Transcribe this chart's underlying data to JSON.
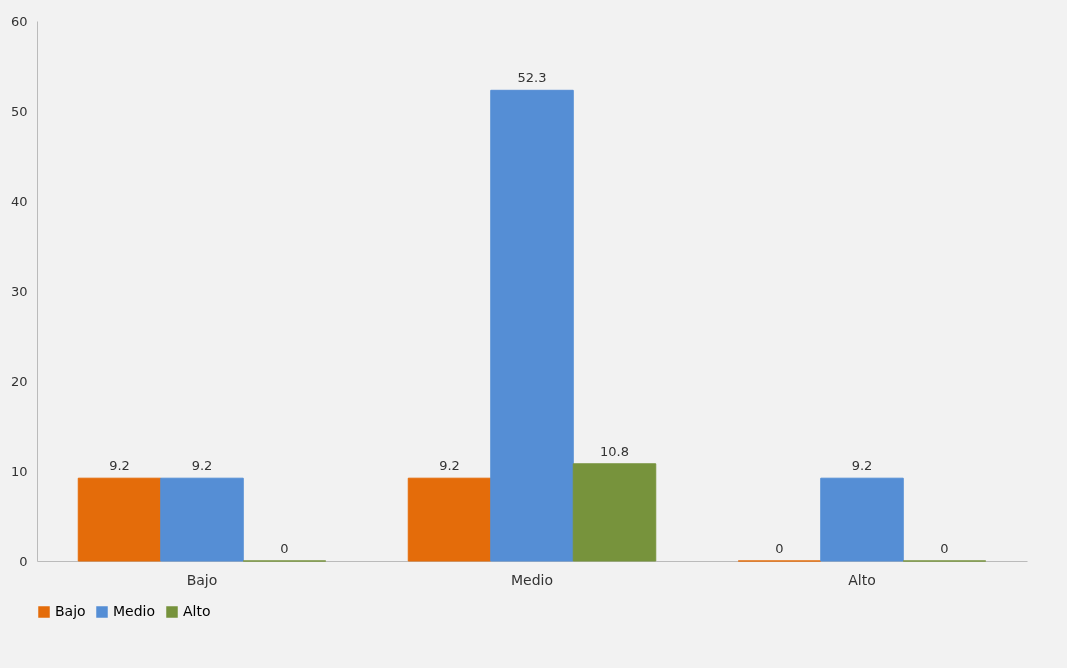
{
  "chart_data": {
    "type": "bar",
    "categories": [
      "Bajo",
      "Medio",
      "Alto"
    ],
    "series": [
      {
        "name": "Bajo",
        "color": "#e46c0a",
        "values": [
          9.2,
          9.2,
          0
        ]
      },
      {
        "name": "Medio",
        "color": "#558ed5",
        "values": [
          9.2,
          52.3,
          9.2
        ]
      },
      {
        "name": "Alto",
        "color": "#77933c",
        "values": [
          0,
          10.8,
          0
        ]
      }
    ],
    "ylim": [
      0,
      60
    ],
    "yticks": [
      0,
      10,
      20,
      30,
      40,
      50,
      60
    ],
    "data_labels": true,
    "legend": "bottom",
    "grid": false
  }
}
